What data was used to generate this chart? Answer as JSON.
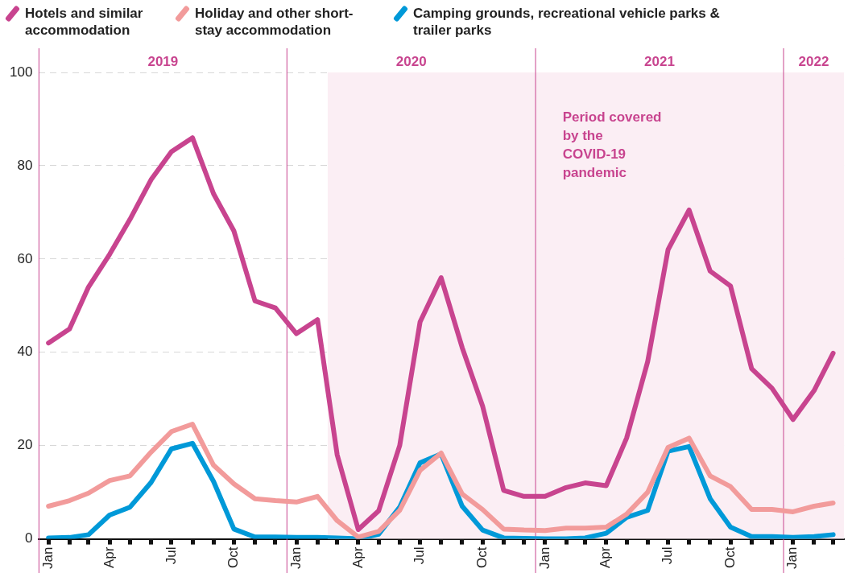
{
  "chart_data": {
    "type": "line",
    "x": [
      "2019-01-15",
      "2019-02-15",
      "2019-03-15",
      "2019-04-15",
      "2019-05-15",
      "2019-06-15",
      "2019-07-15",
      "2019-08-15",
      "2019-09-15",
      "2019-10-15",
      "2019-11-15",
      "2019-12-15",
      "2020-01-15",
      "2020-02-15",
      "2020-03-15",
      "2020-04-15",
      "2020-05-15",
      "2020-06-15",
      "2020-07-15",
      "2020-08-15",
      "2020-09-15",
      "2020-10-15",
      "2020-11-15",
      "2020-12-15",
      "2021-01-15",
      "2021-02-15",
      "2021-03-15",
      "2021-04-15",
      "2021-05-15",
      "2021-06-15",
      "2021-07-15",
      "2021-08-15",
      "2021-09-15",
      "2021-10-15",
      "2021-11-15",
      "2021-12-15",
      "2022-01-15",
      "2022-02-15",
      "2022-03-15"
    ],
    "series": [
      {
        "name": "Hotels and similar accommodation",
        "color": "#c8448f",
        "values": [
          42,
          45,
          54,
          61,
          68.5,
          77,
          83,
          86,
          74,
          66,
          51,
          49.5,
          44,
          47,
          18,
          2,
          6,
          20,
          46.5,
          56,
          41,
          28.5,
          10.4,
          9.1,
          9.1,
          11,
          12,
          11.4,
          21.6,
          38,
          62,
          70.5,
          57.4,
          54.2,
          36.5,
          32.3,
          25.6,
          31.8,
          39.8
        ]
      },
      {
        "name": "Holiday and other short-stay accommodation",
        "color": "#f29b9b",
        "values": [
          7,
          8.2,
          9.8,
          12.5,
          13.5,
          18.6,
          23,
          24.6,
          15.8,
          11.8,
          8.6,
          8.2,
          7.9,
          9.1,
          3.9,
          0.4,
          1.6,
          6.1,
          14.7,
          18.4,
          9.6,
          6.3,
          2.1,
          1.9,
          1.8,
          2.3,
          2.3,
          2.5,
          5.3,
          10,
          19.6,
          21.6,
          13.5,
          11.2,
          6.3,
          6.3,
          5.8,
          7,
          7.7
        ]
      },
      {
        "name": "Camping grounds, recreational vehicle parks & trailer parks",
        "color": "#0099d8",
        "values": [
          0.2,
          0.3,
          0.9,
          5.1,
          6.8,
          12.1,
          19.3,
          20.5,
          12.3,
          2.1,
          0.4,
          0.4,
          0.3,
          0.3,
          0.2,
          0,
          1,
          6.8,
          16.3,
          18.2,
          7,
          1.9,
          0.2,
          0.1,
          0,
          0,
          0.2,
          1.2,
          4.6,
          6.1,
          18.8,
          19.8,
          8.6,
          2.5,
          0.5,
          0.5,
          0.3,
          0.5,
          0.9
        ]
      }
    ],
    "xlim": [
      "2019-01-01",
      "2022-03-31"
    ],
    "xticks": [
      {
        "value": "2019-01-15",
        "label": "Jan"
      },
      {
        "value": "2019-02-15",
        "label": null
      },
      {
        "value": "2019-03-15",
        "label": null
      },
      {
        "value": "2019-04-15",
        "label": "Apr"
      },
      {
        "value": "2019-05-15",
        "label": null
      },
      {
        "value": "2019-06-15",
        "label": null
      },
      {
        "value": "2019-07-15",
        "label": "Jul"
      },
      {
        "value": "2019-08-15",
        "label": null
      },
      {
        "value": "2019-09-15",
        "label": null
      },
      {
        "value": "2019-10-15",
        "label": "Oct"
      },
      {
        "value": "2019-11-15",
        "label": null
      },
      {
        "value": "2019-12-15",
        "label": null
      },
      {
        "value": "2020-01-15",
        "label": "Jan"
      },
      {
        "value": "2020-02-15",
        "label": null
      },
      {
        "value": "2020-03-15",
        "label": null
      },
      {
        "value": "2020-04-15",
        "label": "Apr"
      },
      {
        "value": "2020-05-15",
        "label": null
      },
      {
        "value": "2020-06-15",
        "label": null
      },
      {
        "value": "2020-07-15",
        "label": "Jul"
      },
      {
        "value": "2020-08-15",
        "label": null
      },
      {
        "value": "2020-09-15",
        "label": null
      },
      {
        "value": "2020-10-15",
        "label": "Oct"
      },
      {
        "value": "2020-11-15",
        "label": null
      },
      {
        "value": "2020-12-15",
        "label": null
      },
      {
        "value": "2021-01-15",
        "label": "Jan"
      },
      {
        "value": "2021-02-15",
        "label": null
      },
      {
        "value": "2021-03-15",
        "label": null
      },
      {
        "value": "2021-04-15",
        "label": "Apr"
      },
      {
        "value": "2021-05-15",
        "label": null
      },
      {
        "value": "2021-06-15",
        "label": null
      },
      {
        "value": "2021-07-15",
        "label": "Jul"
      },
      {
        "value": "2021-08-15",
        "label": null
      },
      {
        "value": "2021-09-15",
        "label": null
      },
      {
        "value": "2021-10-15",
        "label": "Oct"
      },
      {
        "value": "2021-11-15",
        "label": null
      },
      {
        "value": "2021-12-15",
        "label": null
      },
      {
        "value": "2022-01-15",
        "label": "Jan"
      },
      {
        "value": "2022-02-15",
        "label": null
      },
      {
        "value": "2022-03-15",
        "label": null
      }
    ],
    "ylim": [
      0,
      100
    ],
    "yticks": [
      0,
      20,
      40,
      60,
      80,
      100
    ],
    "ref_lines": [
      {
        "axis": "x",
        "value": "2019-01-01",
        "label": "2019",
        "color": "#c8448f"
      },
      {
        "axis": "x",
        "value": "2020-01-01",
        "label": "2020",
        "color": "#c8448f"
      },
      {
        "axis": "x",
        "value": "2021-01-01",
        "label": "2021",
        "color": "#c8448f"
      },
      {
        "axis": "x",
        "value": "2022-01-01",
        "label": "2022",
        "color": "#c8448f"
      }
    ],
    "bands": [
      {
        "axis": "x",
        "from": "2020-03-01",
        "to": "2022-03-31",
        "label": "Period covered by the COVID-19 pandemic",
        "color": "#fbeef4"
      }
    ],
    "grid": "y",
    "legend": "top left",
    "marker": "none",
    "line_style": "solid"
  }
}
